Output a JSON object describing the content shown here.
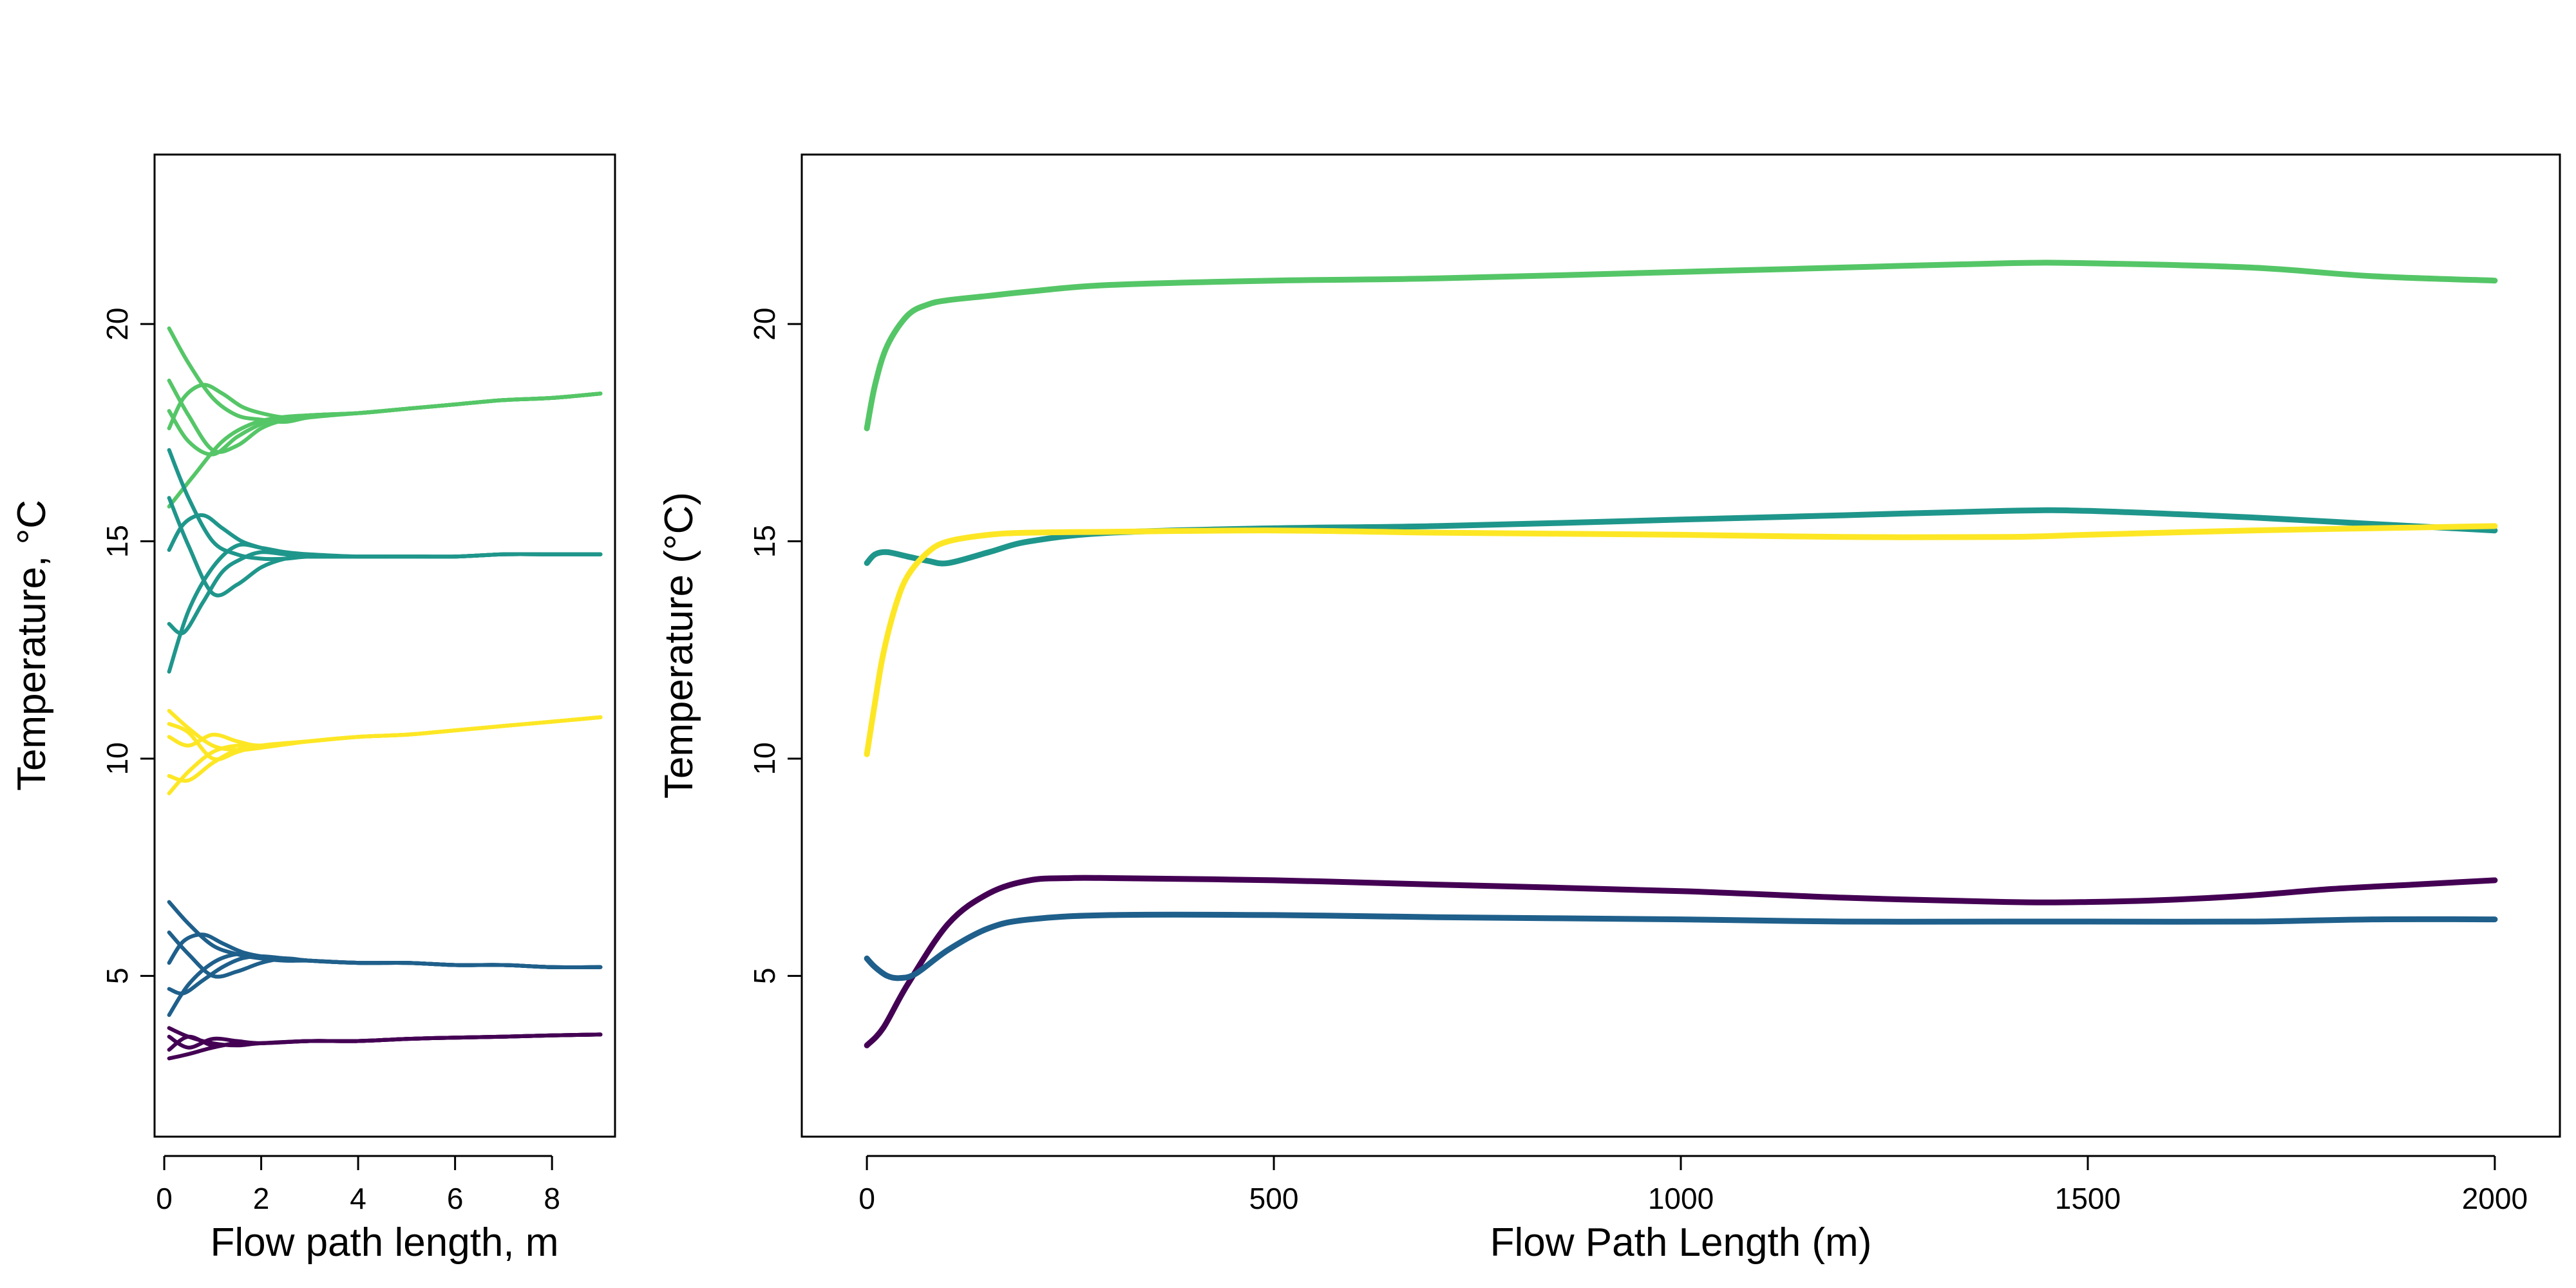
{
  "colors": {
    "purple": "#440154",
    "blue": "#1f5f8b",
    "teal": "#1f968b",
    "green": "#55c667",
    "yellow": "#fde725"
  },
  "chart_data": [
    {
      "type": "line",
      "title": "",
      "xlabel": "Flow path length, m",
      "ylabel": "Temperature, °C",
      "xlim": [
        -0.2,
        9.3
      ],
      "ylim": [
        1.3,
        23.9
      ],
      "xticks": [
        0,
        2,
        4,
        6,
        8
      ],
      "yticks": [
        5,
        10,
        15,
        20
      ],
      "grid": false,
      "legend": "none",
      "series": [
        {
          "color": "#55c667",
          "x": [
            0.1,
            0.5,
            1,
            1.5,
            2,
            2.5,
            3,
            4,
            5,
            6,
            7,
            8,
            9
          ],
          "y": [
            19.9,
            19.1,
            18.3,
            17.9,
            17.8,
            17.75,
            17.85,
            17.95,
            18.05,
            18.15,
            18.25,
            18.3,
            18.4
          ]
        },
        {
          "color": "#55c667",
          "x": [
            0.1,
            0.4,
            0.8,
            1.2,
            1.6,
            2,
            2.5,
            3,
            4,
            5,
            6,
            7,
            8,
            9
          ],
          "y": [
            17.6,
            18.3,
            18.6,
            18.4,
            18.1,
            17.95,
            17.85,
            17.9,
            17.95,
            18.05,
            18.15,
            18.25,
            18.3,
            18.4
          ]
        },
        {
          "color": "#55c667",
          "x": [
            0.1,
            0.5,
            1,
            1.5,
            2,
            2.5,
            3,
            4,
            5,
            6,
            7,
            8,
            9
          ],
          "y": [
            18.7,
            17.9,
            17.1,
            17.2,
            17.6,
            17.8,
            17.9,
            17.95,
            18.05,
            18.15,
            18.25,
            18.3,
            18.4
          ]
        },
        {
          "color": "#55c667",
          "x": [
            0.1,
            0.6,
            1.2,
            1.8,
            2.4,
            3,
            4,
            5,
            6,
            7,
            8,
            9
          ],
          "y": [
            15.8,
            16.5,
            17.3,
            17.7,
            17.85,
            17.9,
            17.95,
            18.05,
            18.15,
            18.25,
            18.3,
            18.4
          ]
        },
        {
          "color": "#55c667",
          "x": [
            0.1,
            0.5,
            1,
            1.5,
            2,
            2.5,
            3,
            4,
            5,
            6,
            7,
            8,
            9
          ],
          "y": [
            18.0,
            17.3,
            17.0,
            17.4,
            17.7,
            17.85,
            17.9,
            17.95,
            18.05,
            18.15,
            18.25,
            18.3,
            18.4
          ]
        },
        {
          "color": "#1f968b",
          "x": [
            0.1,
            0.5,
            1,
            1.5,
            2,
            2.5,
            3,
            4,
            5,
            6,
            7,
            8,
            9
          ],
          "y": [
            17.1,
            16.0,
            15.0,
            14.7,
            14.6,
            14.6,
            14.65,
            14.65,
            14.65,
            14.65,
            14.7,
            14.7,
            14.7
          ]
        },
        {
          "color": "#1f968b",
          "x": [
            0.1,
            0.4,
            0.8,
            1.2,
            1.6,
            2,
            2.5,
            3,
            4,
            5,
            6,
            7,
            8,
            9
          ],
          "y": [
            14.8,
            15.4,
            15.6,
            15.3,
            15.0,
            14.85,
            14.7,
            14.65,
            14.65,
            14.65,
            14.65,
            14.7,
            14.7,
            14.7
          ]
        },
        {
          "color": "#1f968b",
          "x": [
            0.1,
            0.5,
            1,
            1.5,
            2,
            2.5,
            3,
            4,
            5,
            6,
            7,
            8,
            9
          ],
          "y": [
            16.0,
            14.9,
            13.8,
            14.0,
            14.4,
            14.6,
            14.65,
            14.65,
            14.65,
            14.65,
            14.7,
            14.7,
            14.7
          ]
        },
        {
          "color": "#1f968b",
          "x": [
            0.1,
            0.4,
            0.8,
            1.2,
            1.6,
            2,
            2.5,
            3,
            4,
            5,
            6,
            7,
            8,
            9
          ],
          "y": [
            13.1,
            12.9,
            13.6,
            14.3,
            14.6,
            14.75,
            14.7,
            14.65,
            14.65,
            14.65,
            14.65,
            14.7,
            14.7,
            14.7
          ]
        },
        {
          "color": "#1f968b",
          "x": [
            0.1,
            0.5,
            1,
            1.5,
            2,
            2.5,
            3,
            4,
            5,
            6,
            7,
            8,
            9
          ],
          "y": [
            12.0,
            13.4,
            14.4,
            14.9,
            14.85,
            14.75,
            14.7,
            14.65,
            14.65,
            14.65,
            14.7,
            14.7,
            14.7
          ]
        },
        {
          "color": "#fde725",
          "x": [
            0.1,
            0.5,
            1,
            1.5,
            2,
            3,
            4,
            5,
            6,
            7,
            8,
            9
          ],
          "y": [
            11.1,
            10.7,
            10.3,
            10.2,
            10.25,
            10.4,
            10.5,
            10.55,
            10.65,
            10.75,
            10.85,
            10.95
          ]
        },
        {
          "color": "#fde725",
          "x": [
            0.1,
            0.5,
            1,
            1.5,
            2,
            3,
            4,
            5,
            6,
            7,
            8,
            9
          ],
          "y": [
            10.5,
            10.3,
            10.55,
            10.4,
            10.3,
            10.4,
            10.5,
            10.55,
            10.65,
            10.75,
            10.85,
            10.95
          ]
        },
        {
          "color": "#fde725",
          "x": [
            0.1,
            0.5,
            1,
            1.5,
            2,
            3,
            4,
            5,
            6,
            7,
            8,
            9
          ],
          "y": [
            9.2,
            9.7,
            10.15,
            10.3,
            10.3,
            10.4,
            10.5,
            10.55,
            10.65,
            10.75,
            10.85,
            10.95
          ]
        },
        {
          "color": "#fde725",
          "x": [
            0.1,
            0.5,
            1,
            1.5,
            2,
            3,
            4,
            5,
            6,
            7,
            8,
            9
          ],
          "y": [
            9.6,
            9.5,
            9.9,
            10.2,
            10.3,
            10.4,
            10.5,
            10.55,
            10.65,
            10.75,
            10.85,
            10.95
          ]
        },
        {
          "color": "#fde725",
          "x": [
            0.1,
            0.5,
            1,
            1.5,
            2,
            3,
            4,
            5,
            6,
            7,
            8,
            9
          ],
          "y": [
            10.8,
            10.6,
            10.0,
            10.15,
            10.3,
            10.4,
            10.5,
            10.55,
            10.65,
            10.75,
            10.85,
            10.95
          ]
        },
        {
          "color": "#1f5f8b",
          "x": [
            0.1,
            0.5,
            1,
            1.5,
            2,
            2.5,
            3,
            4,
            5,
            6,
            7,
            8,
            9
          ],
          "y": [
            6.7,
            6.2,
            5.7,
            5.5,
            5.4,
            5.35,
            5.35,
            5.3,
            5.3,
            5.25,
            5.25,
            5.2,
            5.2
          ]
        },
        {
          "color": "#1f5f8b",
          "x": [
            0.1,
            0.4,
            0.8,
            1.2,
            1.6,
            2,
            2.5,
            3,
            4,
            5,
            6,
            7,
            8,
            9
          ],
          "y": [
            5.3,
            5.8,
            5.95,
            5.75,
            5.55,
            5.45,
            5.4,
            5.35,
            5.3,
            5.3,
            5.25,
            5.25,
            5.2,
            5.2
          ]
        },
        {
          "color": "#1f5f8b",
          "x": [
            0.1,
            0.5,
            1,
            1.5,
            2,
            2.5,
            3,
            4,
            5,
            6,
            7,
            8,
            9
          ],
          "y": [
            6.0,
            5.5,
            5.0,
            5.1,
            5.3,
            5.4,
            5.35,
            5.3,
            5.3,
            5.25,
            5.25,
            5.2,
            5.2
          ]
        },
        {
          "color": "#1f5f8b",
          "x": [
            0.1,
            0.4,
            0.8,
            1.2,
            1.6,
            2,
            2.5,
            3,
            4,
            5,
            6,
            7,
            8,
            9
          ],
          "y": [
            4.7,
            4.6,
            4.9,
            5.2,
            5.4,
            5.45,
            5.4,
            5.35,
            5.3,
            5.3,
            5.25,
            5.25,
            5.2,
            5.2
          ]
        },
        {
          "color": "#1f5f8b",
          "x": [
            0.1,
            0.5,
            1,
            1.5,
            2,
            2.5,
            3,
            4,
            5,
            6,
            7,
            8,
            9
          ],
          "y": [
            4.1,
            4.8,
            5.3,
            5.5,
            5.45,
            5.4,
            5.35,
            5.3,
            5.3,
            5.25,
            5.25,
            5.2,
            5.2
          ]
        },
        {
          "color": "#440154",
          "x": [
            0.1,
            0.5,
            1,
            1.5,
            2,
            3,
            4,
            5,
            6,
            7,
            8,
            9
          ],
          "y": [
            3.8,
            3.6,
            3.45,
            3.4,
            3.45,
            3.5,
            3.5,
            3.55,
            3.58,
            3.6,
            3.63,
            3.65
          ]
        },
        {
          "color": "#440154",
          "x": [
            0.1,
            0.5,
            1,
            1.5,
            2,
            3,
            4,
            5,
            6,
            7,
            8,
            9
          ],
          "y": [
            3.6,
            3.35,
            3.55,
            3.5,
            3.45,
            3.5,
            3.5,
            3.55,
            3.58,
            3.6,
            3.63,
            3.65
          ]
        },
        {
          "color": "#440154",
          "x": [
            0.1,
            0.5,
            1,
            1.5,
            2,
            3,
            4,
            5,
            6,
            7,
            8,
            9
          ],
          "y": [
            3.3,
            3.6,
            3.4,
            3.45,
            3.45,
            3.5,
            3.5,
            3.55,
            3.58,
            3.6,
            3.63,
            3.65
          ]
        },
        {
          "color": "#440154",
          "x": [
            0.1,
            0.5,
            1,
            1.5,
            2,
            3,
            4,
            5,
            6,
            7,
            8,
            9
          ],
          "y": [
            3.1,
            3.2,
            3.35,
            3.45,
            3.45,
            3.5,
            3.5,
            3.55,
            3.58,
            3.6,
            3.63,
            3.65
          ]
        }
      ]
    },
    {
      "type": "line",
      "title": "",
      "xlabel": "Flow Path Length (m)",
      "ylabel": "Temperature (°C)",
      "xlim": [
        -80,
        2080
      ],
      "ylim": [
        1.3,
        23.9
      ],
      "xticks": [
        0,
        500,
        1000,
        1500,
        2000
      ],
      "yticks": [
        5,
        10,
        15,
        20
      ],
      "grid": false,
      "legend": "none",
      "series": [
        {
          "color": "#55c667",
          "x": [
            0,
            10,
            25,
            50,
            75,
            100,
            150,
            200,
            300,
            500,
            700,
            1000,
            1200,
            1400,
            1500,
            1700,
            1850,
            2000
          ],
          "y": [
            17.6,
            18.6,
            19.5,
            20.2,
            20.45,
            20.55,
            20.65,
            20.75,
            20.9,
            21.0,
            21.05,
            21.2,
            21.3,
            21.4,
            21.4,
            21.3,
            21.1,
            21.0
          ]
        },
        {
          "color": "#1f968b",
          "x": [
            0,
            10,
            25,
            50,
            75,
            100,
            150,
            200,
            300,
            500,
            700,
            1000,
            1200,
            1400,
            1500,
            1700,
            1850,
            2000
          ],
          "y": [
            14.5,
            14.7,
            14.75,
            14.65,
            14.55,
            14.5,
            14.75,
            15.0,
            15.2,
            15.3,
            15.35,
            15.5,
            15.6,
            15.7,
            15.7,
            15.55,
            15.4,
            15.25
          ]
        },
        {
          "color": "#fde725",
          "x": [
            0,
            10,
            20,
            35,
            50,
            75,
            100,
            150,
            200,
            300,
            500,
            700,
            1000,
            1200,
            1400,
            1500,
            1700,
            1850,
            2000
          ],
          "y": [
            10.1,
            11.3,
            12.4,
            13.5,
            14.2,
            14.75,
            15.0,
            15.15,
            15.2,
            15.22,
            15.25,
            15.2,
            15.15,
            15.1,
            15.1,
            15.15,
            15.25,
            15.3,
            15.35
          ]
        },
        {
          "color": "#440154",
          "x": [
            0,
            20,
            50,
            100,
            150,
            200,
            250,
            300,
            500,
            700,
            1000,
            1200,
            1400,
            1500,
            1600,
            1700,
            1800,
            1900,
            2000
          ],
          "y": [
            3.4,
            3.8,
            4.8,
            6.2,
            6.9,
            7.2,
            7.25,
            7.25,
            7.2,
            7.1,
            6.95,
            6.8,
            6.7,
            6.7,
            6.75,
            6.85,
            7.0,
            7.1,
            7.2
          ]
        },
        {
          "color": "#1f5f8b",
          "x": [
            0,
            10,
            25,
            40,
            60,
            100,
            150,
            200,
            300,
            500,
            700,
            1000,
            1200,
            1400,
            1500,
            1700,
            1850,
            2000
          ],
          "y": [
            5.4,
            5.2,
            5.0,
            4.95,
            5.05,
            5.6,
            6.1,
            6.3,
            6.4,
            6.4,
            6.35,
            6.3,
            6.25,
            6.25,
            6.25,
            6.25,
            6.3,
            6.3
          ]
        }
      ]
    }
  ]
}
